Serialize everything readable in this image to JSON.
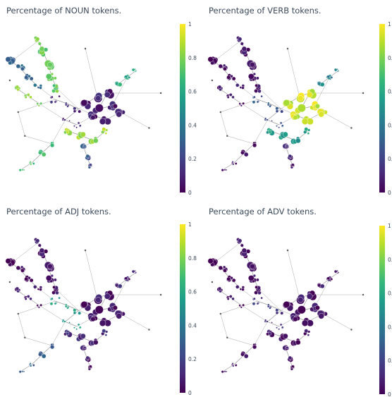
{
  "chart_data": [
    {
      "type": "network-scatter",
      "title": "Percentage of NOUN tokens.",
      "colorscale": "viridis",
      "colorbar": {
        "range": [
          0,
          1
        ],
        "ticks": [
          "0",
          "0.2",
          "0.4",
          "0.6",
          "0.8",
          "1"
        ]
      },
      "cluster_values": {
        "top_left_arm": 0.75,
        "left_hub": 0.35,
        "left_branch": 0.8,
        "center": 0.1,
        "right_cluster": 0.08,
        "right_upper_arm": 0.6,
        "lower_middle": 0.85,
        "bottom_left_arm": 0.7,
        "bottom_arm": 0.25
      }
    },
    {
      "type": "network-scatter",
      "title": "Percentage of VERB tokens.",
      "colorscale": "viridis",
      "colorbar": {
        "range": [
          0,
          1
        ],
        "ticks": [
          "0",
          "0.",
          "0.",
          "0.",
          "0.",
          "1"
        ]
      },
      "cluster_values": {
        "top_left_arm": 0.04,
        "left_hub": 0.06,
        "left_branch": 0.04,
        "center": 0.25,
        "right_cluster": 0.92,
        "right_upper_arm": 0.45,
        "lower_middle": 0.55,
        "bottom_left_arm": 0.05,
        "bottom_arm": 0.08
      }
    },
    {
      "type": "network-scatter",
      "title": "Percentage of ADJ tokens.",
      "colorscale": "viridis",
      "colorbar": {
        "range": [
          0,
          1
        ],
        "ticks": [
          "0",
          "0.2",
          "0.4",
          "0.6",
          "0.8",
          "1"
        ]
      },
      "cluster_values": {
        "top_left_arm": 0.04,
        "left_hub": 0.05,
        "left_branch": 0.05,
        "center": 0.55,
        "right_cluster": 0.05,
        "right_upper_arm": 0.1,
        "lower_middle": 0.12,
        "bottom_left_arm": 0.3,
        "bottom_arm": 0.05
      }
    },
    {
      "type": "network-scatter",
      "title": "Percentage of ADV tokens.",
      "colorscale": "viridis",
      "colorbar": {
        "range": [
          0,
          1
        ],
        "ticks": [
          "0",
          "0.",
          "0.",
          "0.",
          "0.",
          "1"
        ]
      },
      "cluster_values": {
        "top_left_arm": 0.03,
        "left_hub": 0.03,
        "left_branch": 0.03,
        "center": 0.15,
        "right_cluster": 0.04,
        "right_upper_arm": 0.05,
        "lower_middle": 0.04,
        "bottom_left_arm": 0.05,
        "bottom_arm": 0.03
      }
    }
  ]
}
